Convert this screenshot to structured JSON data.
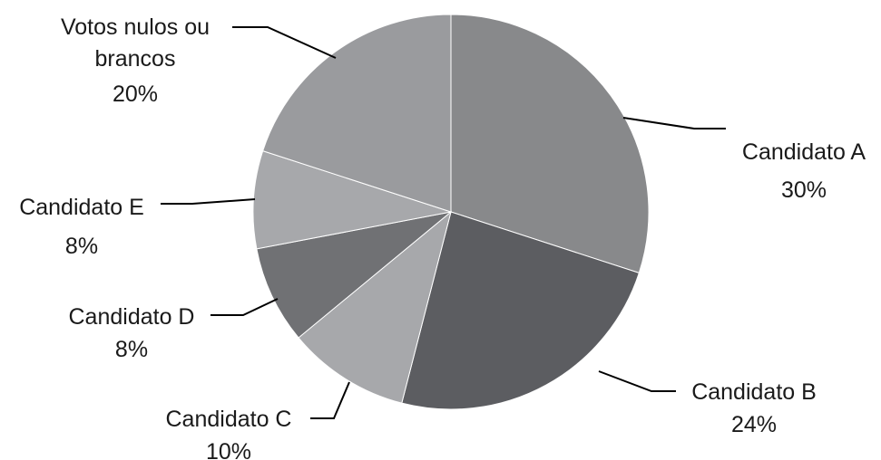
{
  "chart_data": {
    "type": "pie",
    "title": "",
    "slices": [
      {
        "label": "Candidato A",
        "value": 30,
        "value_label": "30%",
        "color": "#88898b"
      },
      {
        "label": "Candidato B",
        "value": 24,
        "value_label": "24%",
        "color": "#5c5d61"
      },
      {
        "label": "Candidato C",
        "value": 10,
        "value_label": "10%",
        "color": "#a7a8ab"
      },
      {
        "label": "Candidato D",
        "value": 8,
        "value_label": "8%",
        "color": "#707174"
      },
      {
        "label": "Candidato E",
        "value": 8,
        "value_label": "8%",
        "color": "#a7a8ab"
      },
      {
        "label": "Votos nulos ou brancos",
        "label_lines": [
          "Votos nulos ou",
          "brancos"
        ],
        "value": 20,
        "value_label": "20%",
        "color": "#9a9b9e"
      }
    ],
    "start_angle": "12 o'clock",
    "direction": "clockwise",
    "legend": "none",
    "labels": "outside-with-leader-lines"
  }
}
